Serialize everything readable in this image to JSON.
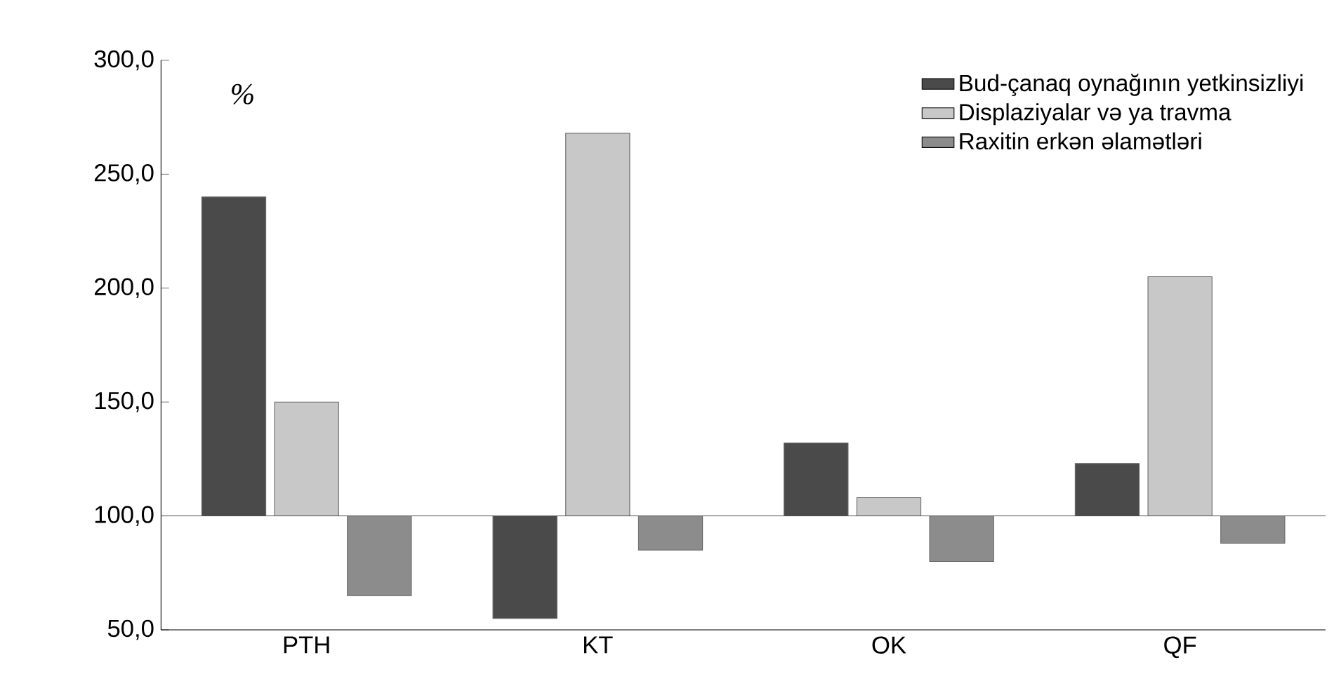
{
  "chart_data": {
    "type": "bar",
    "ylabel": "%",
    "categories": [
      "PTH",
      "KT",
      "OK",
      "QF"
    ],
    "series": [
      {
        "name": "Bud-çanaq oynağının yetkinsizliyi",
        "color": "#4a4a4a",
        "base": [
          100,
          100,
          100,
          100
        ],
        "values": [
          140,
          -45,
          32,
          23
        ]
      },
      {
        "name": "Displaziyalar və ya travma",
        "color": "#c8c8c8",
        "base": [
          100,
          100,
          100,
          100
        ],
        "values": [
          50,
          168,
          8,
          105
        ]
      },
      {
        "name": "Raxitin erkən əlamətləri",
        "color": "#8c8c8c",
        "base": [
          100,
          100,
          100,
          100
        ],
        "values": [
          -35,
          -15,
          -20,
          -12
        ]
      }
    ],
    "ylim": [
      50,
      300
    ],
    "yticks": [
      {
        "value": 50,
        "label": "50,0"
      },
      {
        "value": 100,
        "label": "100,0"
      },
      {
        "value": 150,
        "label": "150,0"
      },
      {
        "value": 200,
        "label": "200,0"
      },
      {
        "value": 250,
        "label": "250,0"
      },
      {
        "value": 300,
        "label": "300,0"
      }
    ],
    "legend": "top right"
  }
}
